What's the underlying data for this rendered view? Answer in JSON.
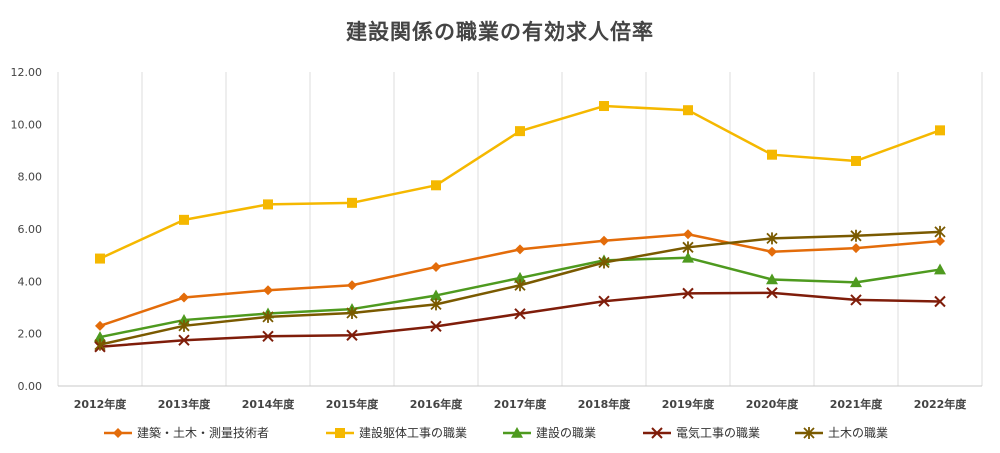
{
  "chart_data": {
    "type": "line",
    "title": "建設関係の職業の有効求人倍率",
    "xlabel": "",
    "ylabel": "",
    "categories": [
      "2012年度",
      "2013年度",
      "2014年度",
      "2015年度",
      "2016年度",
      "2017年度",
      "2018年度",
      "2019年度",
      "2020年度",
      "2021年度",
      "2022年度"
    ],
    "ylim": [
      0,
      12
    ],
    "yticks": [
      "0.00",
      "2.00",
      "4.00",
      "6.00",
      "8.00",
      "10.00",
      "12.00"
    ],
    "grid": "vertical",
    "legend": "bottom",
    "series": [
      {
        "name": "建築・土木・測量技術者",
        "color": "#e36c0a",
        "marker": "diamond",
        "values": [
          2.3,
          3.38,
          3.66,
          3.85,
          4.55,
          5.22,
          5.55,
          5.8,
          5.13,
          5.27,
          5.54
        ]
      },
      {
        "name": "建設躯体工事の職業",
        "color": "#f5b800",
        "marker": "square",
        "values": [
          4.87,
          6.35,
          6.94,
          7.0,
          7.67,
          9.74,
          10.7,
          10.54,
          8.84,
          8.6,
          9.77
        ]
      },
      {
        "name": "建設の職業",
        "color": "#4e9a1f",
        "marker": "triangle",
        "values": [
          1.87,
          2.52,
          2.77,
          2.94,
          3.46,
          4.13,
          4.8,
          4.9,
          4.07,
          3.96,
          4.45
        ]
      },
      {
        "name": "電気工事の職業",
        "color": "#7f1d0a",
        "marker": "x",
        "values": [
          1.5,
          1.75,
          1.9,
          1.94,
          2.28,
          2.76,
          3.24,
          3.54,
          3.56,
          3.29,
          3.23
        ]
      },
      {
        "name": "土木の職業",
        "color": "#7a5a00",
        "marker": "asterisk",
        "values": [
          1.58,
          2.3,
          2.64,
          2.79,
          3.12,
          3.85,
          4.72,
          5.3,
          5.64,
          5.74,
          5.89
        ]
      }
    ]
  }
}
